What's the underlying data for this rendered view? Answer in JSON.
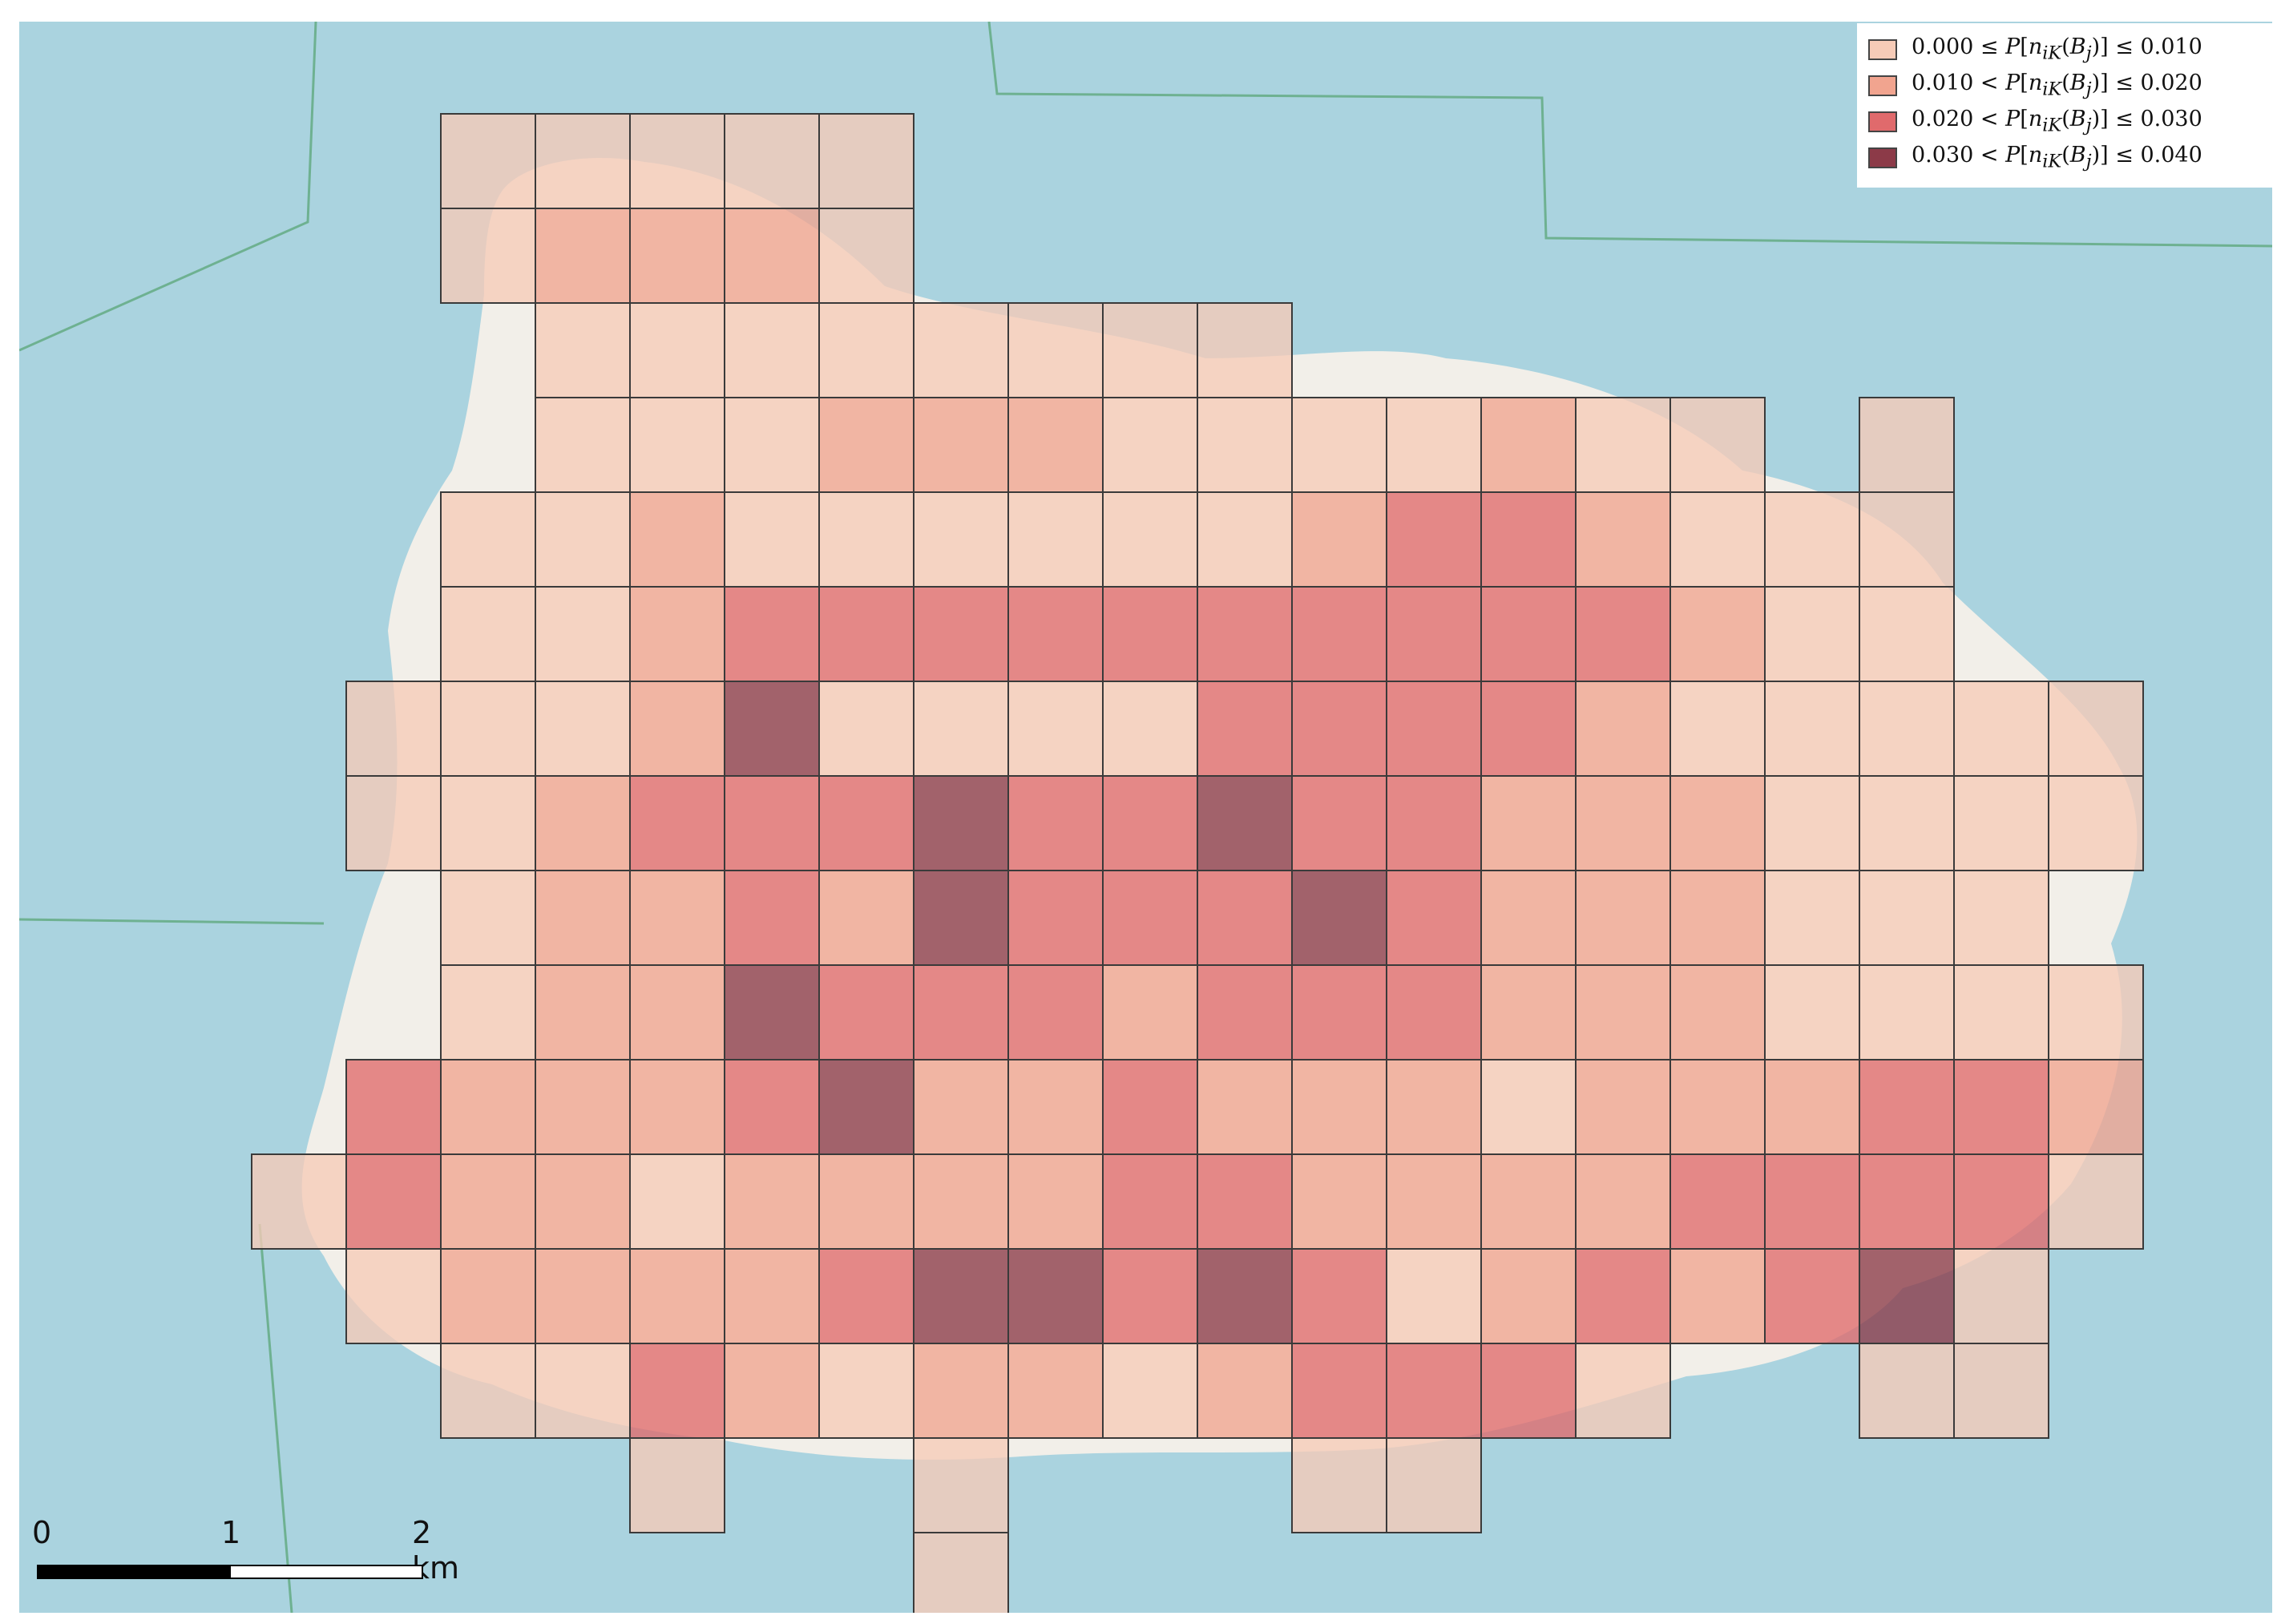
{
  "map": {
    "water_color": "#aad3df",
    "land_color": "#f2efe9",
    "cell_border_color": "#3a3a3a",
    "class_colors": [
      "#f6cbb7",
      "#f1a48f",
      "#e06a6c",
      "#8c3a48"
    ],
    "grid_rows": [
      [
        null,
        null,
        0,
        0,
        0,
        0,
        0,
        null,
        null,
        null,
        null,
        null,
        null,
        null,
        null,
        null,
        null,
        null,
        null,
        null
      ],
      [
        null,
        null,
        0,
        1,
        1,
        1,
        0,
        null,
        null,
        null,
        null,
        null,
        null,
        null,
        null,
        null,
        null,
        null,
        null,
        null
      ],
      [
        null,
        null,
        null,
        0,
        0,
        0,
        0,
        0,
        0,
        0,
        0,
        null,
        null,
        null,
        null,
        null,
        null,
        null,
        null,
        null
      ],
      [
        null,
        null,
        null,
        0,
        0,
        0,
        1,
        1,
        1,
        0,
        0,
        0,
        0,
        1,
        0,
        0,
        null,
        0,
        null,
        null
      ],
      [
        null,
        null,
        0,
        0,
        1,
        0,
        0,
        0,
        0,
        0,
        0,
        1,
        2,
        2,
        1,
        0,
        0,
        0,
        null,
        null
      ],
      [
        null,
        null,
        0,
        0,
        1,
        2,
        2,
        2,
        2,
        2,
        2,
        2,
        2,
        2,
        2,
        1,
        0,
        0,
        null,
        null
      ],
      [
        null,
        0,
        0,
        0,
        1,
        3,
        0,
        0,
        0,
        0,
        2,
        2,
        2,
        2,
        1,
        0,
        0,
        0,
        0,
        0
      ],
      [
        null,
        0,
        0,
        1,
        2,
        2,
        2,
        3,
        2,
        2,
        3,
        2,
        2,
        1,
        1,
        1,
        0,
        0,
        0,
        0
      ],
      [
        null,
        null,
        0,
        1,
        1,
        2,
        1,
        3,
        2,
        2,
        2,
        3,
        2,
        1,
        1,
        1,
        0,
        0,
        0,
        null
      ],
      [
        null,
        null,
        0,
        1,
        1,
        3,
        2,
        2,
        2,
        1,
        2,
        2,
        2,
        1,
        1,
        1,
        0,
        0,
        0,
        0
      ],
      [
        null,
        2,
        1,
        1,
        1,
        2,
        3,
        1,
        1,
        2,
        1,
        1,
        1,
        0,
        1,
        1,
        1,
        2,
        2,
        1
      ],
      [
        0,
        2,
        1,
        1,
        0,
        1,
        1,
        1,
        1,
        2,
        2,
        1,
        1,
        1,
        1,
        2,
        2,
        2,
        2,
        0
      ],
      [
        null,
        0,
        1,
        1,
        1,
        1,
        2,
        3,
        3,
        2,
        3,
        2,
        0,
        1,
        2,
        1,
        2,
        3,
        0,
        null
      ],
      [
        null,
        null,
        0,
        0,
        2,
        1,
        0,
        1,
        1,
        0,
        1,
        2,
        2,
        2,
        0,
        null,
        null,
        0,
        0,
        null
      ],
      [
        null,
        null,
        null,
        null,
        0,
        null,
        null,
        0,
        null,
        null,
        null,
        0,
        0,
        null,
        null,
        null,
        null,
        null,
        null,
        null
      ],
      [
        null,
        null,
        null,
        null,
        null,
        null,
        null,
        0,
        null,
        null,
        null,
        null,
        null,
        null,
        null,
        null,
        null,
        null,
        null,
        null
      ]
    ]
  },
  "legend": {
    "items": [
      {
        "prefix": "0.000 ≤ ",
        "suffix": " ≤ 0.010"
      },
      {
        "prefix": "0.010 < ",
        "suffix": " ≤ 0.020"
      },
      {
        "prefix": "0.020 < ",
        "suffix": " ≤ 0.030"
      },
      {
        "prefix": "0.030 < ",
        "suffix": " ≤ 0.040"
      }
    ],
    "expression": "P[n_iK(B_j)]"
  },
  "scale_bar": {
    "tick_0": "0",
    "tick_1": "1",
    "tick_2": "2 km"
  }
}
